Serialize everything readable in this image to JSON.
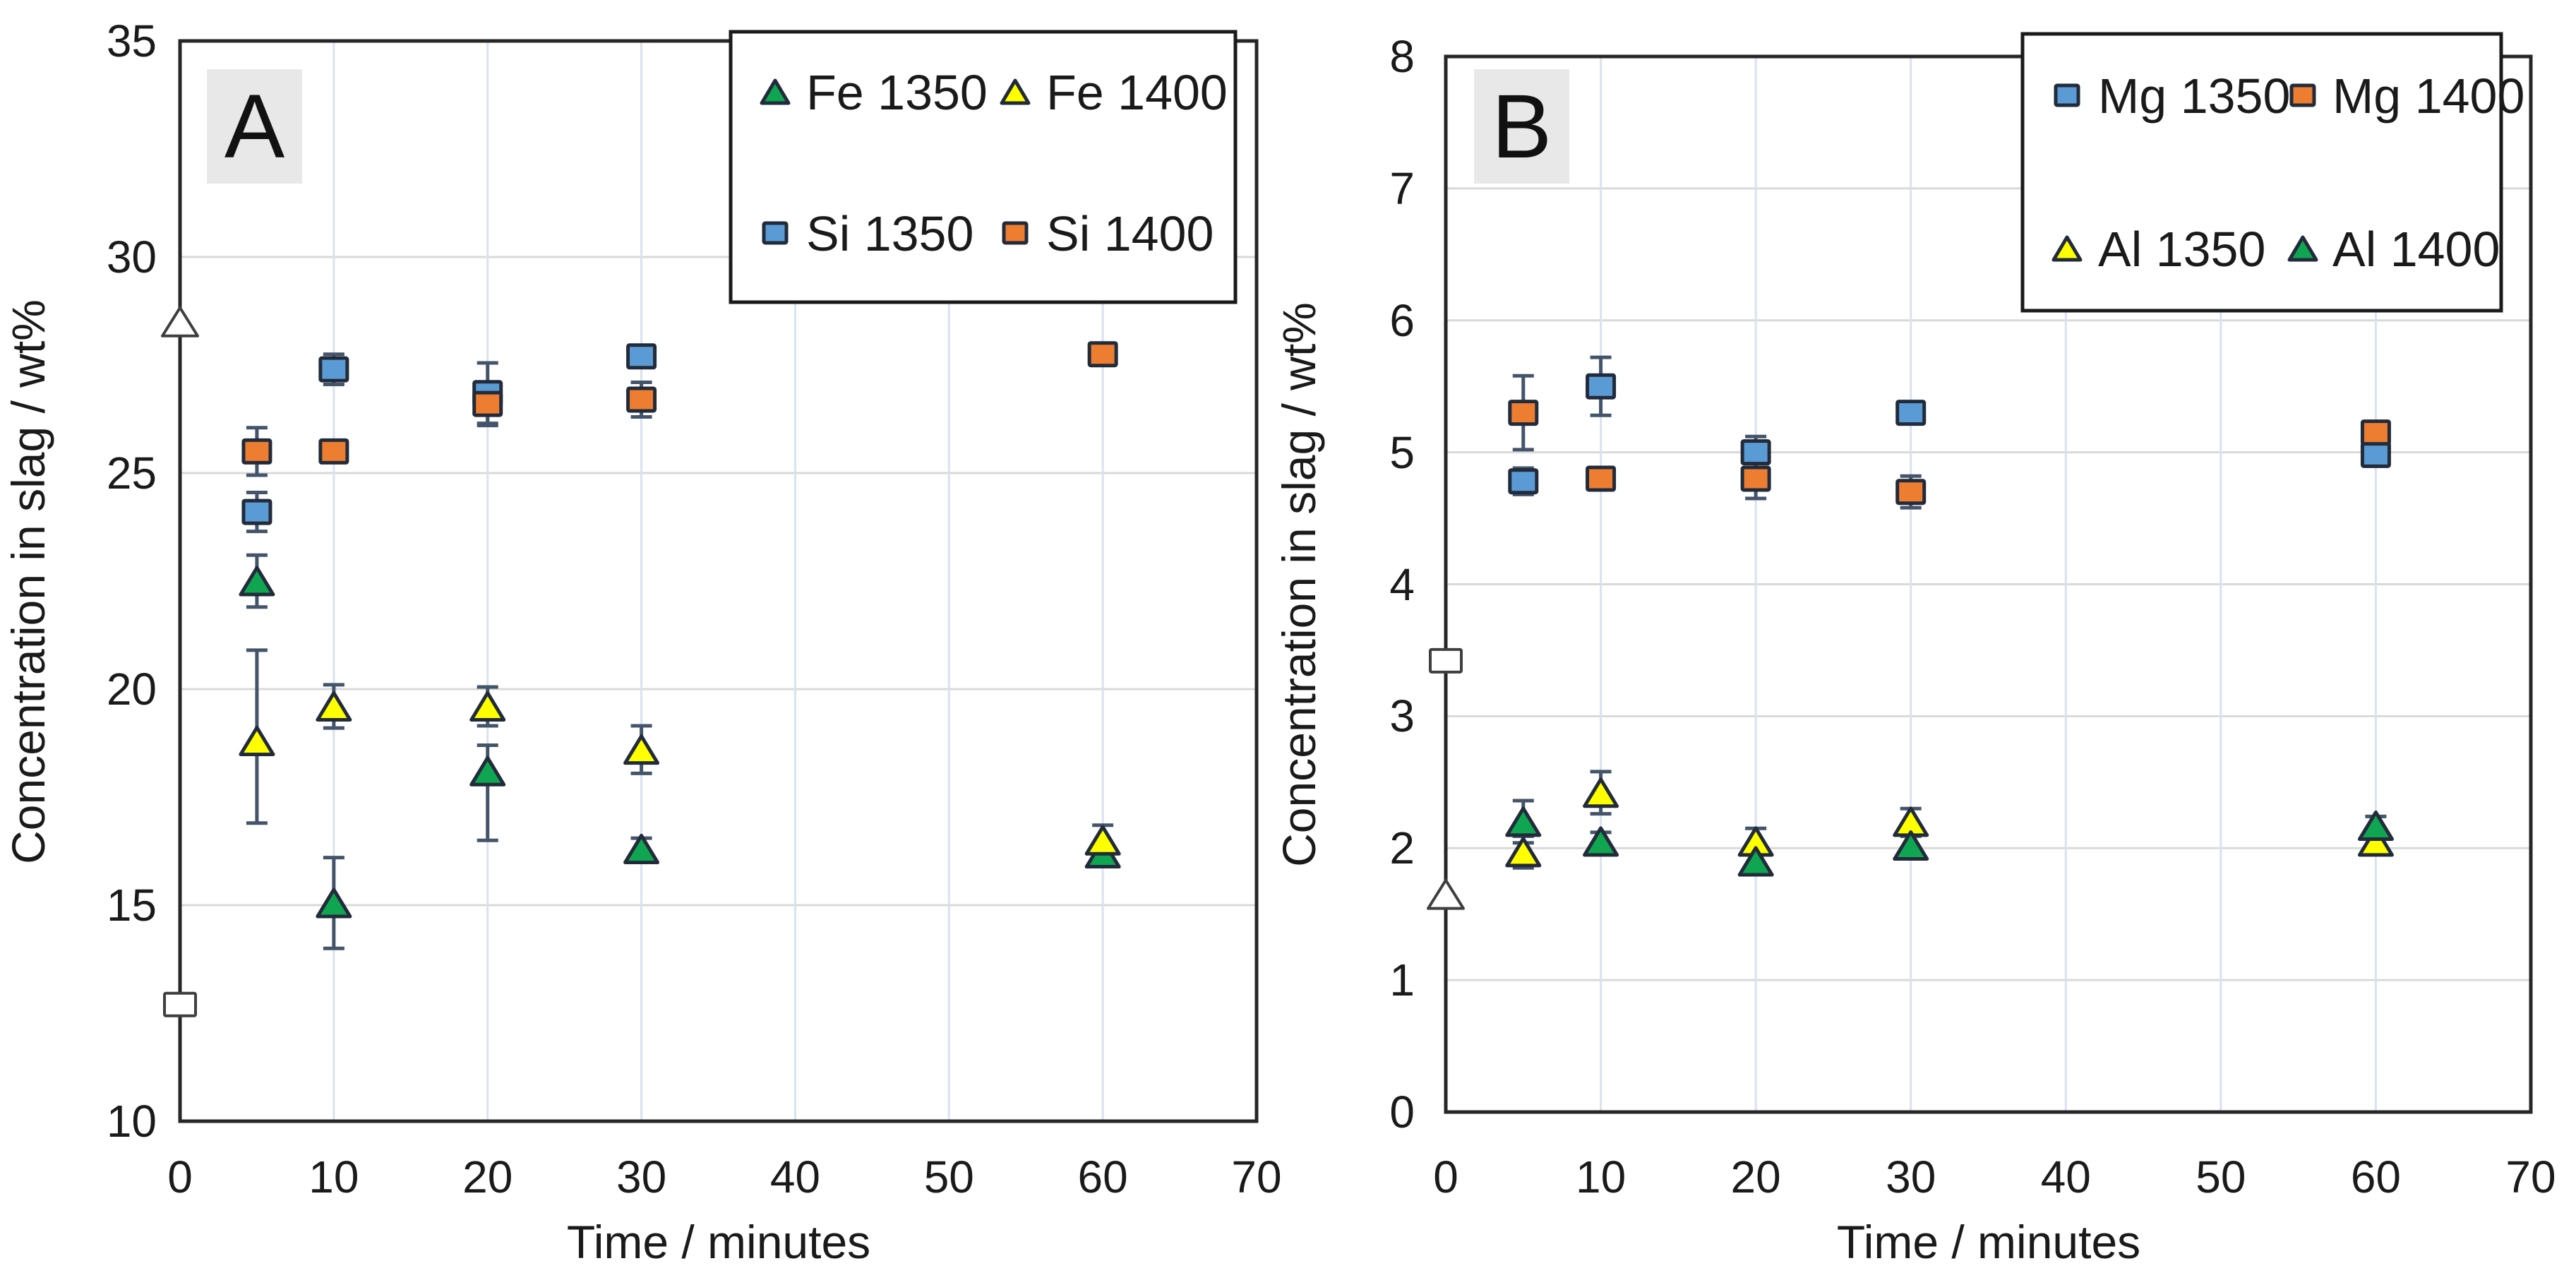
{
  "figure": {
    "background": "#ffffff",
    "panel_labels": [
      "A",
      "B"
    ]
  },
  "colors": {
    "series_blue": "#5B9BD5",
    "series_orange": "#ED7D31",
    "series_green": "#10A551",
    "series_yellow": "#FFFF00",
    "marker_outline": "#222B3A",
    "error_bar": "#44546A",
    "grid_horizontal": "#D9D9D9",
    "grid_vertical": "#D9E2F0",
    "plot_border": "#262626",
    "panel_label_bg": "#E8E8E8",
    "open_marker_stroke": "#3F3F3F",
    "open_marker_fill": "#FFFFFF",
    "legend_border": "#1A1A1A",
    "legend_fill": "#FFFFFF",
    "text": "#1A1A1A"
  },
  "chart_data": [
    {
      "type": "scatter",
      "panel_label": "A",
      "xlabel": "Time / minutes",
      "ylabel": "Concentration in slag / wt%",
      "xlim": [
        0,
        70
      ],
      "xticks": [
        0,
        10,
        20,
        30,
        40,
        50,
        60,
        70
      ],
      "ylim": [
        10,
        35
      ],
      "yticks": [
        10,
        15,
        20,
        25,
        30,
        35
      ],
      "grid": true,
      "legend_position": "top-right-inside",
      "legend_layout": [
        [
          "Fe 1350",
          "Fe 1400"
        ],
        [
          "Si 1350",
          "Si 1400"
        ]
      ],
      "series": [
        {
          "name": "Fe 1350",
          "marker": "triangle",
          "color_key": "series_green",
          "points": [
            {
              "x": 5,
              "y": 22.5,
              "e": 0.6
            },
            {
              "x": 10,
              "y": 15.05,
              "e": 1.05
            },
            {
              "x": 20,
              "y": 18.1,
              "el": 1.6,
              "eu": 0.6
            },
            {
              "x": 30,
              "y": 16.3,
              "e": 0.25
            },
            {
              "x": 60,
              "y": 16.2,
              "e": 0.2
            }
          ]
        },
        {
          "name": "Fe 1400",
          "marker": "triangle",
          "color_key": "series_yellow",
          "points": [
            {
              "x": 5,
              "y": 18.8,
              "el": 1.9,
              "eu": 2.1
            },
            {
              "x": 10,
              "y": 19.6,
              "e": 0.5
            },
            {
              "x": 20,
              "y": 19.6,
              "e": 0.45
            },
            {
              "x": 30,
              "y": 18.6,
              "e": 0.55
            },
            {
              "x": 60,
              "y": 16.5,
              "e": 0.35
            }
          ]
        },
        {
          "name": "Si 1350",
          "marker": "square",
          "color_key": "series_blue",
          "points": [
            {
              "x": 5,
              "y": 24.1,
              "e": 0.45
            },
            {
              "x": 10,
              "y": 27.4,
              "e": 0.35
            },
            {
              "x": 20,
              "y": 26.85,
              "e": 0.7
            },
            {
              "x": 30,
              "y": 27.7,
              "e": 0.25
            }
          ]
        },
        {
          "name": "Si 1400",
          "marker": "square",
          "color_key": "series_orange",
          "points": [
            {
              "x": 5,
              "y": 25.5,
              "e": 0.55
            },
            {
              "x": 10,
              "y": 25.5,
              "e": 0.2
            },
            {
              "x": 20,
              "y": 26.6,
              "e": 0.5
            },
            {
              "x": 30,
              "y": 26.7,
              "e": 0.4
            },
            {
              "x": 60,
              "y": 27.75,
              "e": 0.25
            }
          ]
        }
      ],
      "reference_markers": [
        {
          "marker": "triangle-open",
          "x": 0,
          "y": 28.5
        },
        {
          "marker": "square-open",
          "x": 0,
          "y": 12.7
        }
      ]
    },
    {
      "type": "scatter",
      "panel_label": "B",
      "xlabel": "Time / minutes",
      "ylabel": "Concentration in slag / wt%",
      "xlim": [
        0,
        70
      ],
      "xticks": [
        0,
        10,
        20,
        30,
        40,
        50,
        60,
        70
      ],
      "ylim": [
        0,
        8
      ],
      "yticks": [
        0,
        1,
        2,
        3,
        4,
        5,
        6,
        7,
        8
      ],
      "grid": true,
      "legend_position": "top-right-inside",
      "legend_layout": [
        [
          "Mg 1350",
          "Mg 1400"
        ],
        [
          "Al 1350",
          "Al 1400"
        ]
      ],
      "series": [
        {
          "name": "Mg 1350",
          "marker": "square",
          "color_key": "series_blue",
          "points": [
            {
              "x": 5,
              "y": 4.78,
              "e": 0.1
            },
            {
              "x": 10,
              "y": 5.5,
              "e": 0.22
            },
            {
              "x": 20,
              "y": 5.0,
              "e": 0.12
            },
            {
              "x": 30,
              "y": 5.3,
              "e": 0.07
            },
            {
              "x": 60,
              "y": 4.98,
              "e": 0.07
            }
          ]
        },
        {
          "name": "Mg 1400",
          "marker": "square",
          "color_key": "series_orange",
          "points": [
            {
              "x": 5,
              "y": 5.3,
              "e": 0.28
            },
            {
              "x": 10,
              "y": 4.8,
              "e": 0.08
            },
            {
              "x": 20,
              "y": 4.8,
              "e": 0.15
            },
            {
              "x": 30,
              "y": 4.7,
              "e": 0.12
            },
            {
              "x": 60,
              "y": 5.15,
              "e": 0.08
            }
          ]
        },
        {
          "name": "Al 1350",
          "marker": "triangle",
          "color_key": "series_yellow",
          "points": [
            {
              "x": 5,
              "y": 1.97,
              "e": 0.12
            },
            {
              "x": 10,
              "y": 2.42,
              "e": 0.16
            },
            {
              "x": 20,
              "y": 2.05,
              "e": 0.1
            },
            {
              "x": 30,
              "y": 2.2,
              "e": 0.1
            },
            {
              "x": 60,
              "y": 2.05,
              "e": 0.06
            }
          ]
        },
        {
          "name": "Al 1400",
          "marker": "triangle",
          "color_key": "series_green",
          "points": [
            {
              "x": 5,
              "y": 2.2,
              "e": 0.16
            },
            {
              "x": 10,
              "y": 2.05,
              "e": 0.07
            },
            {
              "x": 20,
              "y": 1.9,
              "e": 0.1
            },
            {
              "x": 30,
              "y": 2.02,
              "e": 0.07
            },
            {
              "x": 60,
              "y": 2.17,
              "e": 0.07
            }
          ]
        }
      ],
      "reference_markers": [
        {
          "marker": "square-open",
          "x": 0,
          "y": 3.42
        },
        {
          "marker": "triangle-open",
          "x": 0,
          "y": 1.65
        }
      ]
    }
  ]
}
